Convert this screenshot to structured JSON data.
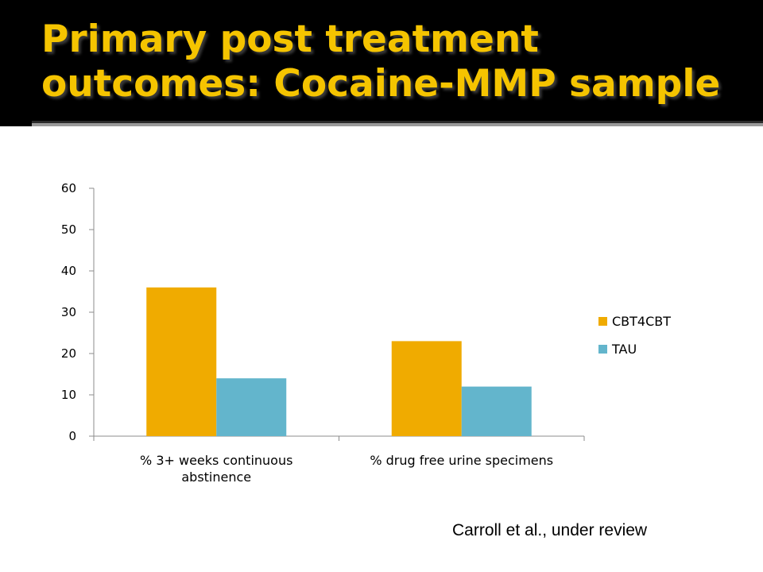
{
  "slide": {
    "title_line1": "Primary post treatment",
    "title_line2": "outcomes: Cocaine-MMP sample",
    "citation": "Carroll et al., under review",
    "colors": {
      "title": "#f5c400",
      "background": "#000000",
      "panel": "#ffffff"
    }
  },
  "chart_data": {
    "type": "bar",
    "categories": [
      [
        "% 3+ weeks continuous",
        "abstinence"
      ],
      [
        "% drug free urine specimens"
      ]
    ],
    "series": [
      {
        "name": "CBT4CBT",
        "values": [
          36,
          23
        ],
        "color": "#f0ab00"
      },
      {
        "name": "TAU",
        "values": [
          14,
          12
        ],
        "color": "#63b5cc"
      }
    ],
    "y_ticks": [
      0,
      10,
      20,
      30,
      40,
      50,
      60
    ],
    "ylim": [
      0,
      60
    ],
    "grid": false,
    "legend_position": "right"
  }
}
